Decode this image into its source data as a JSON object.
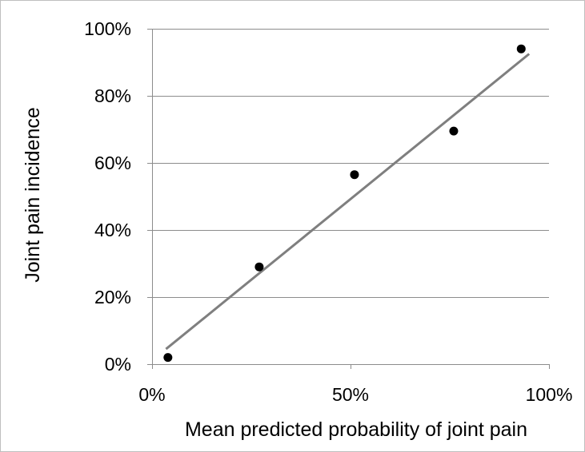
{
  "chart_data": {
    "type": "scatter",
    "xlabel": "Mean predicted probability of joint pain",
    "ylabel": "Joint pain incidence",
    "xlim": [
      0,
      1
    ],
    "ylim": [
      0,
      1
    ],
    "x_ticks": [
      0,
      0.5,
      1
    ],
    "x_tick_labels": [
      "0%",
      "50%",
      "100%"
    ],
    "y_ticks": [
      0,
      0.2,
      0.4,
      0.6,
      0.8,
      1
    ],
    "y_tick_labels": [
      "0%",
      "20%",
      "40%",
      "60%",
      "80%",
      "100%"
    ],
    "grid": "horizontal",
    "legend": "none",
    "series": [
      {
        "type": "scatter",
        "color": "#000000",
        "points": [
          {
            "x": 0.04,
            "y": 0.02
          },
          {
            "x": 0.27,
            "y": 0.29
          },
          {
            "x": 0.51,
            "y": 0.565
          },
          {
            "x": 0.76,
            "y": 0.695
          },
          {
            "x": 0.93,
            "y": 0.94
          }
        ]
      },
      {
        "type": "line",
        "color": "#7f7f7f",
        "points": [
          {
            "x": 0.035,
            "y": 0.045
          },
          {
            "x": 0.95,
            "y": 0.925
          }
        ]
      }
    ]
  }
}
